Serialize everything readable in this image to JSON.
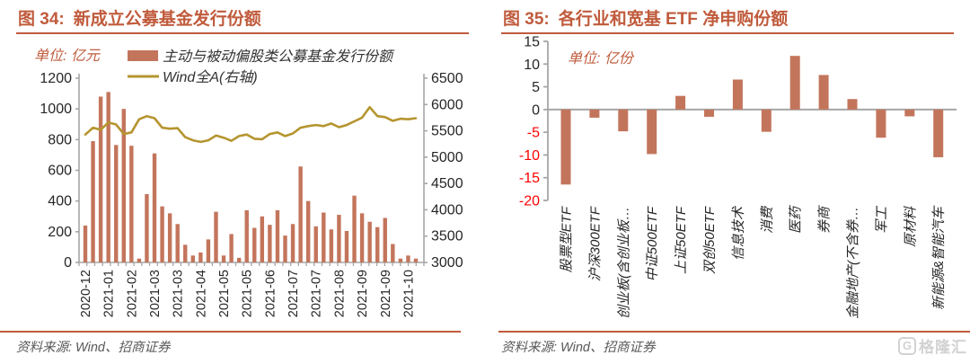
{
  "colors": {
    "accent": "#C05B3C",
    "bar": "#C3755C",
    "line": "#B5952F",
    "axis": "#A6A6A6",
    "dark": "#262626",
    "negative_tick": "#FF0000",
    "legend_text": "#333333",
    "source": "#595959",
    "logo": "#D2D2D2"
  },
  "left_panel": {
    "figure_label": "图 34:",
    "title": "新成立公募基金发行份额"
  },
  "right_panel": {
    "figure_label": "图 35:",
    "title": "各行业和宽基 ETF 净申购份额"
  },
  "footer": {
    "source": "资料来源: Wind、招商证券",
    "logo_g": "G",
    "logo_text": "格隆汇"
  },
  "chart_data": [
    {
      "type": "bar",
      "title": "新成立公募基金发行份额",
      "unit": "单位: 亿元",
      "x_labels": [
        "2020-12",
        "2021-01",
        "2021-02",
        "2021-03",
        "2021-03",
        "2021-04",
        "2021-05",
        "2021-05",
        "2021-06",
        "2021-07",
        "2021-07",
        "2021-08",
        "2021-09",
        "2021-09",
        "2021-10"
      ],
      "label_every": 3,
      "series": [
        {
          "name": "主动与被动偏股类公募基金发行份额",
          "type": "bar",
          "axis": "left",
          "values": [
            240,
            790,
            1080,
            1110,
            765,
            1000,
            760,
            25,
            445,
            710,
            365,
            320,
            250,
            115,
            45,
            65,
            150,
            330,
            45,
            185,
            30,
            340,
            225,
            300,
            245,
            340,
            175,
            250,
            625,
            400,
            235,
            325,
            215,
            310,
            205,
            435,
            320,
            265,
            230,
            290,
            120,
            25,
            45,
            25
          ]
        },
        {
          "name": "Wind全A(右轴)",
          "type": "line",
          "axis": "right",
          "values": [
            5430,
            5560,
            5520,
            5660,
            5620,
            5440,
            5470,
            5720,
            5780,
            5740,
            5560,
            5540,
            5550,
            5380,
            5320,
            5290,
            5320,
            5410,
            5370,
            5310,
            5400,
            5430,
            5350,
            5340,
            5440,
            5470,
            5400,
            5450,
            5560,
            5590,
            5610,
            5590,
            5640,
            5570,
            5610,
            5680,
            5750,
            5950,
            5780,
            5760,
            5690,
            5730,
            5720,
            5740
          ]
        }
      ],
      "left_axis": {
        "min": 0,
        "max": 1200,
        "step": 200,
        "ticks": [
          0,
          200,
          400,
          600,
          800,
          1000,
          1200
        ]
      },
      "right_axis": {
        "min": 3000,
        "max": 6500,
        "step": 500,
        "ticks": [
          3000,
          3500,
          4000,
          4500,
          5000,
          5500,
          6000,
          6500
        ]
      },
      "legend_position": "top"
    },
    {
      "type": "bar",
      "title": "各行业和宽基 ETF 净申购份额",
      "unit": "单位: 亿份",
      "categories": [
        "股票型ETF",
        "沪深300ETF",
        "创业板(含创业板…",
        "中证500ETF",
        "上证50ETF",
        "双创50ETF",
        "信息技术",
        "消费",
        "医药",
        "券商",
        "金融地产(不含券…",
        "军工",
        "原材料",
        "新能源&智能汽车"
      ],
      "values": [
        -16.5,
        -1.8,
        -4.8,
        -9.8,
        3.0,
        -1.6,
        6.6,
        -4.9,
        11.8,
        7.6,
        2.3,
        -6.2,
        -1.5,
        -10.5
      ],
      "y_axis": {
        "min": -20,
        "max": 15,
        "step": 5,
        "ticks": [
          15,
          10,
          5,
          0,
          -5,
          -10,
          -15,
          -20
        ]
      },
      "grid": "zero-line-only"
    }
  ]
}
